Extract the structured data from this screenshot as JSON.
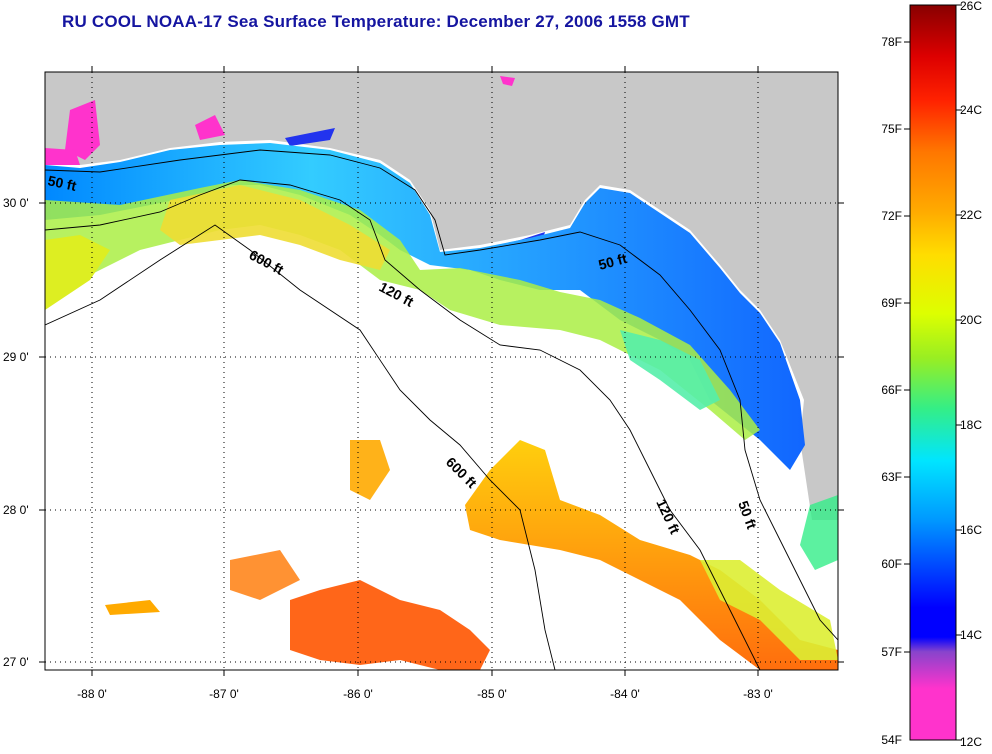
{
  "title": "RU COOL  NOAA-17  Sea Surface Temperature:  December 27, 2006 1558 GMT",
  "map": {
    "lon_labels": [
      "-88 0'",
      "-87 0'",
      "-86 0'",
      "-85 0'",
      "-84 0'",
      "-83 0'"
    ],
    "lat_labels": [
      "30 0'",
      "29 0'",
      "28 0'",
      "27 0'"
    ],
    "isobaths": [
      {
        "label": "50 ft",
        "value_ft": 50
      },
      {
        "label": "600 ft",
        "value_ft": 600
      },
      {
        "label": "120 ft",
        "value_ft": 120
      },
      {
        "label": "50 ft",
        "value_ft": 50
      },
      {
        "label": "600 ft",
        "value_ft": 600
      },
      {
        "label": "120 ft",
        "value_ft": 120
      },
      {
        "label": "50 ft",
        "value_ft": 50
      }
    ]
  },
  "colorbar": {
    "fahrenheit": [
      "78F",
      "75F",
      "72F",
      "69F",
      "66F",
      "63F",
      "60F",
      "57F",
      "54F"
    ],
    "celsius": [
      "26C",
      "24C",
      "22C",
      "20C",
      "18C",
      "16C",
      "14C",
      "12C"
    ],
    "colors": {
      "c12": "#ff33cc",
      "c13": "#8844cc",
      "c14": "#0000ff",
      "c16": "#0099ff",
      "c17": "#00e5ff",
      "c18": "#33ee88",
      "c19": "#99ee22",
      "c20": "#ddff00",
      "c21": "#ffdd00",
      "c22": "#ffaa00",
      "c23": "#ff7700",
      "c24": "#ff2200",
      "c25": "#dd0000",
      "c26": "#880000"
    }
  },
  "colors": {
    "land": "#c8c8c8",
    "title": "#1515a0",
    "no_data": "#ffffff"
  }
}
